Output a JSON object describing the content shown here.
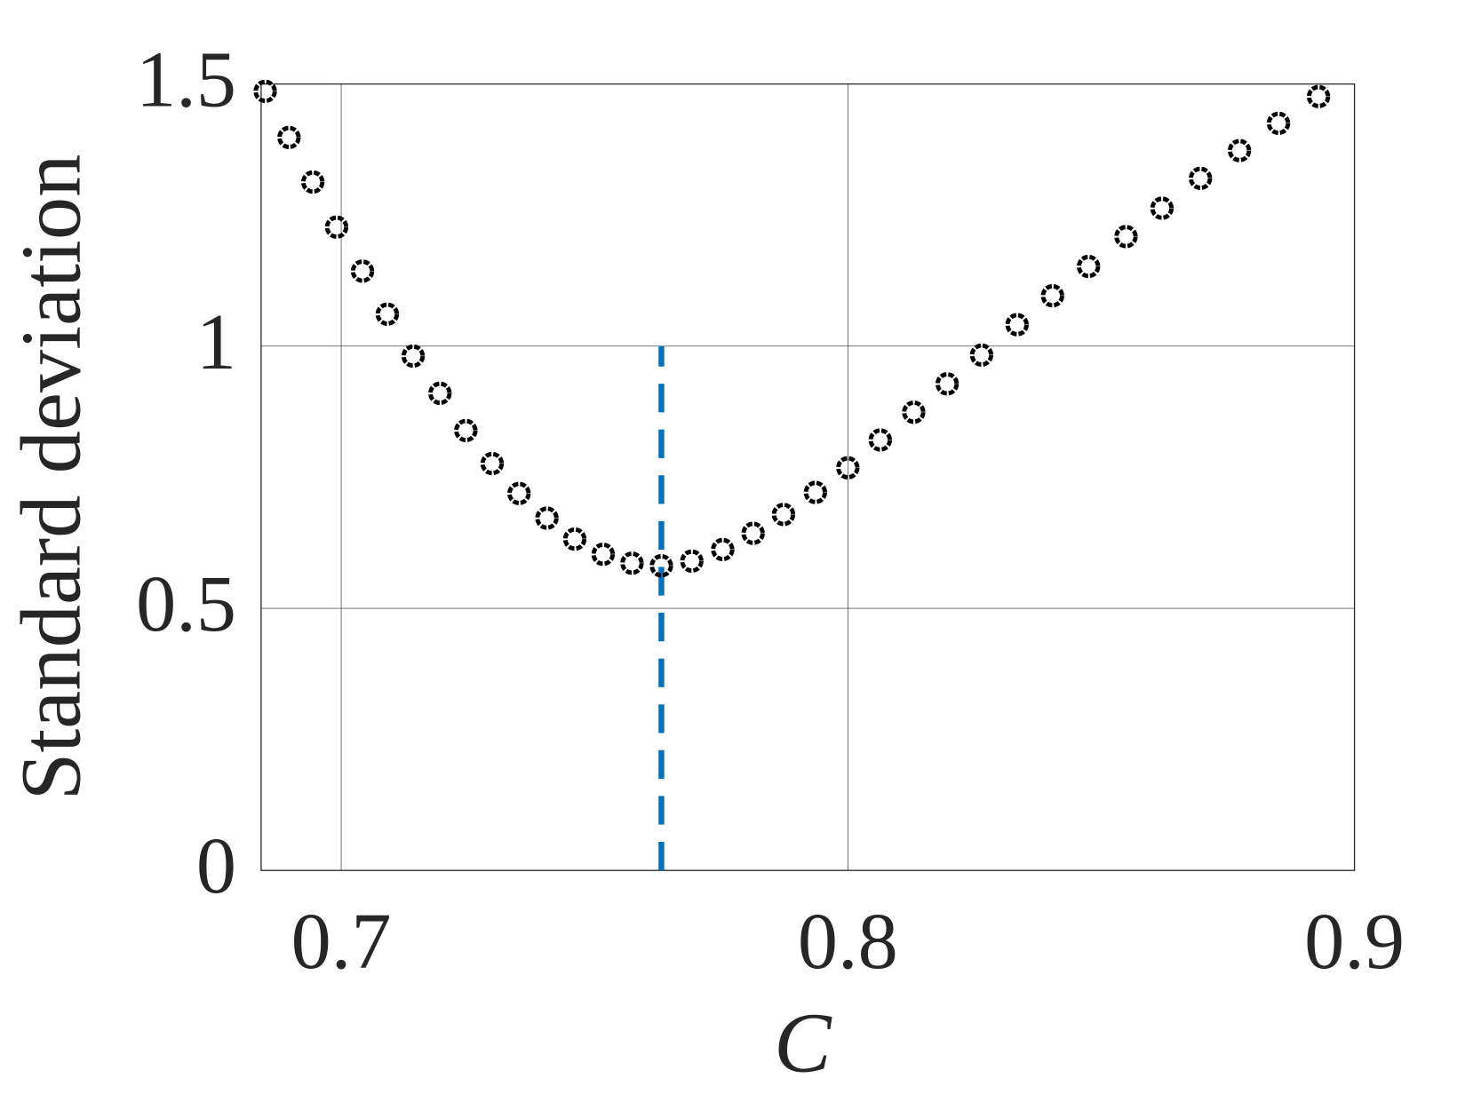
{
  "chart_data": {
    "type": "scatter",
    "xlabel": "C",
    "ylabel": "Standard deviation",
    "x": [
      0.685,
      0.6897,
      0.6944,
      0.6991,
      0.7042,
      0.7091,
      0.7142,
      0.7195,
      0.7246,
      0.7298,
      0.7351,
      0.7406,
      0.7461,
      0.7517,
      0.7574,
      0.7632,
      0.7692,
      0.7753,
      0.7813,
      0.7873,
      0.7936,
      0.8,
      0.8064,
      0.813,
      0.8196,
      0.8264,
      0.8334,
      0.8404,
      0.8475,
      0.8549,
      0.862,
      0.8696,
      0.8773,
      0.885,
      0.8929
    ],
    "values": [
      1.486,
      1.398,
      1.313,
      1.227,
      1.143,
      1.061,
      0.981,
      0.91,
      0.839,
      0.776,
      0.719,
      0.672,
      0.632,
      0.603,
      0.586,
      0.581,
      0.59,
      0.612,
      0.643,
      0.679,
      0.721,
      0.768,
      0.821,
      0.874,
      0.928,
      0.983,
      1.041,
      1.096,
      1.152,
      1.209,
      1.263,
      1.32,
      1.373,
      1.425,
      1.476
    ],
    "color": "#000000",
    "vline": {
      "x": 0.7632,
      "y": [
        0,
        1
      ],
      "color": "#0072bd"
    },
    "xlim": [
      0.6842,
      0.9
    ],
    "xticks": [
      0.7,
      0.8,
      0.9
    ],
    "ylim": [
      0,
      1.5
    ],
    "yticks": [
      0,
      0.5,
      1,
      1.5
    ],
    "grid": true
  }
}
